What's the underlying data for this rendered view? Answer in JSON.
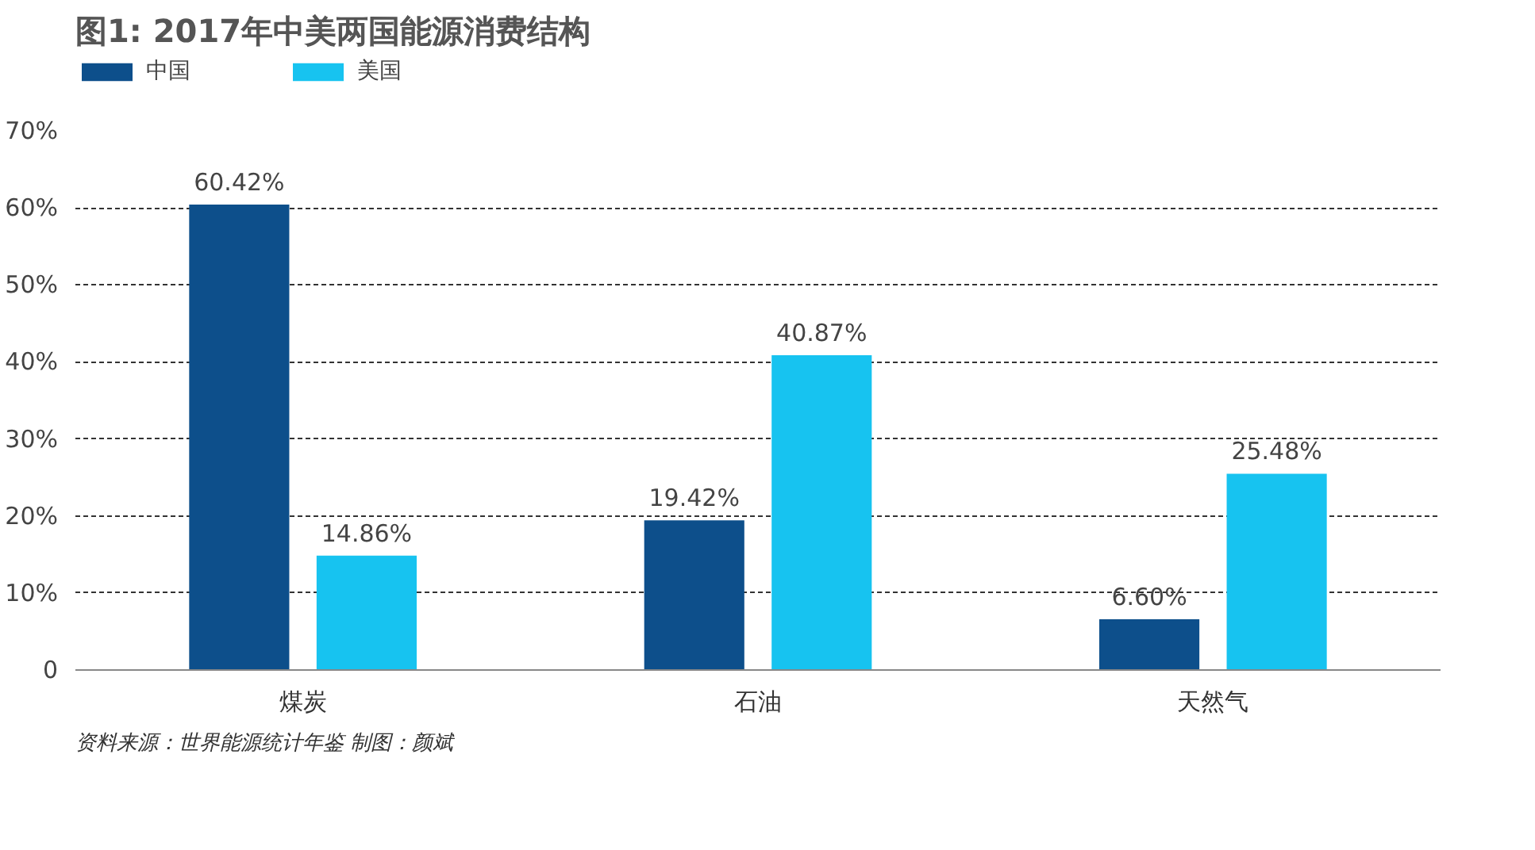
{
  "chart_data": {
    "type": "bar",
    "title": "图1: 2017年中美两国能源消费结构",
    "categories": [
      "煤炭",
      "石油",
      "天然气"
    ],
    "series": [
      {
        "name": "中国",
        "color": "#0d4f8b",
        "values": [
          60.42,
          19.42,
          6.6
        ],
        "value_labels": [
          "60.42%",
          "19.42%",
          "6.60%"
        ]
      },
      {
        "name": "美国",
        "color": "#17c3f0",
        "values": [
          14.86,
          40.87,
          25.48
        ],
        "value_labels": [
          "14.86%",
          "40.87%",
          "25.48%"
        ]
      }
    ],
    "ylim": [
      0,
      70
    ],
    "yticks": [
      {
        "value": 0,
        "label": "0"
      },
      {
        "value": 10,
        "label": "10%"
      },
      {
        "value": 20,
        "label": "20%"
      },
      {
        "value": 30,
        "label": "30%"
      },
      {
        "value": 40,
        "label": "40%"
      },
      {
        "value": 50,
        "label": "50%"
      },
      {
        "value": 60,
        "label": "60%"
      },
      {
        "value": 70,
        "label": "70%"
      }
    ],
    "grid": "y",
    "legend": "top left",
    "annotations": [
      "资料来源：世界能源统计年鉴    制图：颜斌"
    ]
  }
}
